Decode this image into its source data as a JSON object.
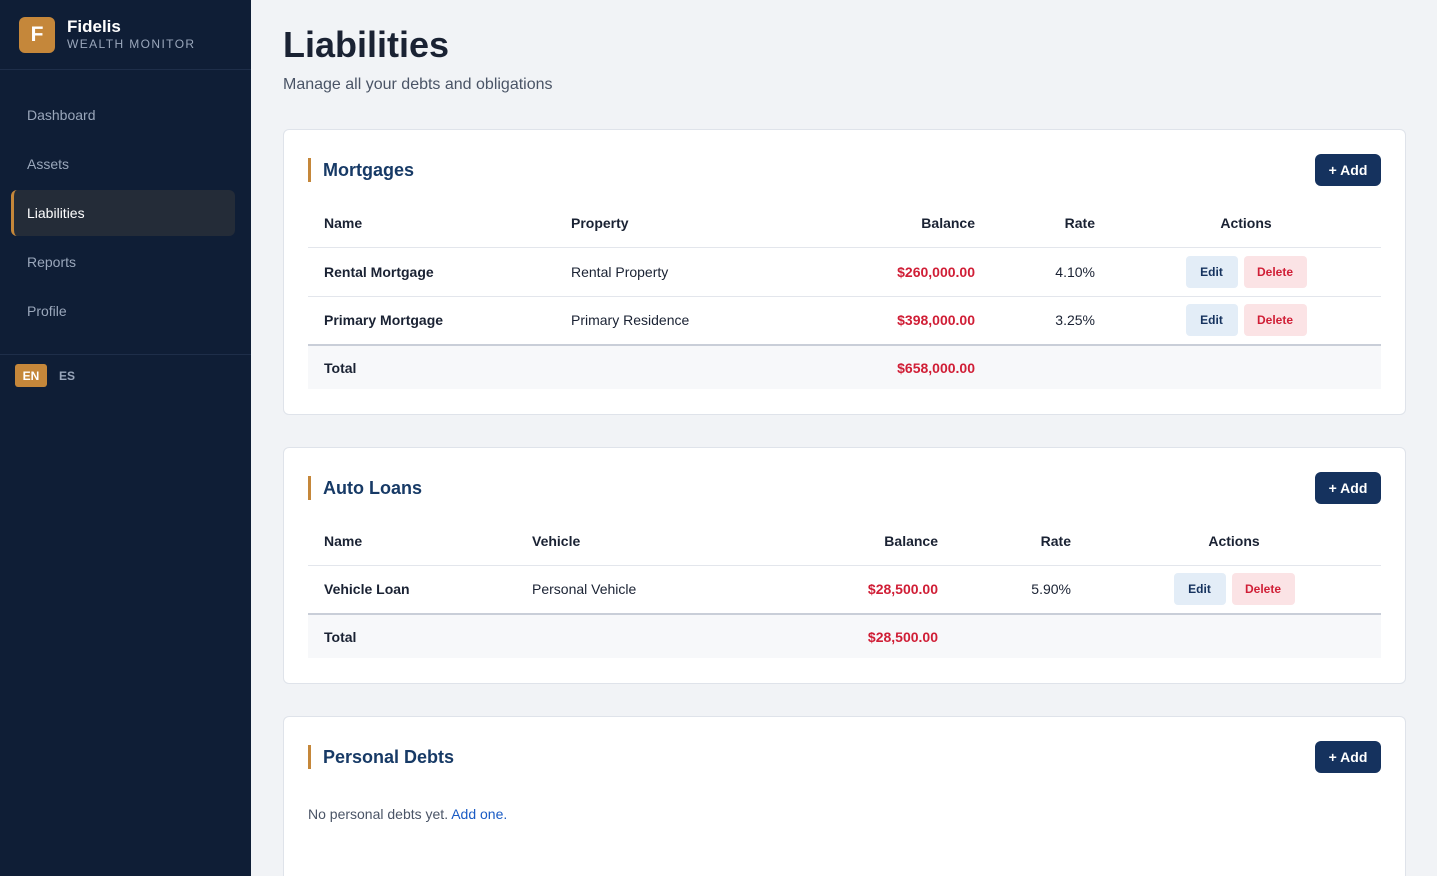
{
  "brand": {
    "logo_letter": "F",
    "name": "Fidelis",
    "subtitle": "WEALTH MONITOR"
  },
  "nav": [
    {
      "label": "Dashboard",
      "active": false
    },
    {
      "label": "Assets",
      "active": false
    },
    {
      "label": "Liabilities",
      "active": true
    },
    {
      "label": "Reports",
      "active": false
    },
    {
      "label": "Profile",
      "active": false
    }
  ],
  "languages": [
    {
      "code": "EN",
      "active": true
    },
    {
      "code": "ES",
      "active": false
    }
  ],
  "page": {
    "title": "Liabilities",
    "subtitle": "Manage all your debts and obligations"
  },
  "buttons": {
    "add": "+ Add",
    "edit": "Edit",
    "delete": "Delete"
  },
  "mortgages": {
    "title": "Mortgages",
    "columns": [
      "Name",
      "Property",
      "Balance",
      "Rate",
      "Actions"
    ],
    "rows": [
      {
        "name": "Rental Mortgage",
        "property": "Rental Property",
        "balance": "$260,000.00",
        "rate": "4.10%"
      },
      {
        "name": "Primary Mortgage",
        "property": "Primary Residence",
        "balance": "$398,000.00",
        "rate": "3.25%"
      }
    ],
    "total_label": "Total",
    "total": "$658,000.00"
  },
  "auto_loans": {
    "title": "Auto Loans",
    "columns": [
      "Name",
      "Vehicle",
      "Balance",
      "Rate",
      "Actions"
    ],
    "rows": [
      {
        "name": "Vehicle Loan",
        "vehicle": "Personal Vehicle",
        "balance": "$28,500.00",
        "rate": "5.90%"
      }
    ],
    "total_label": "Total",
    "total": "$28,500.00"
  },
  "personal_debts": {
    "title": "Personal Debts",
    "empty_text": "No personal debts yet.",
    "empty_link": "Add one."
  },
  "colors": {
    "sidebar": "#0f1e36",
    "accent": "#c5873a",
    "primary": "#15325e",
    "negative": "#d01e36"
  }
}
